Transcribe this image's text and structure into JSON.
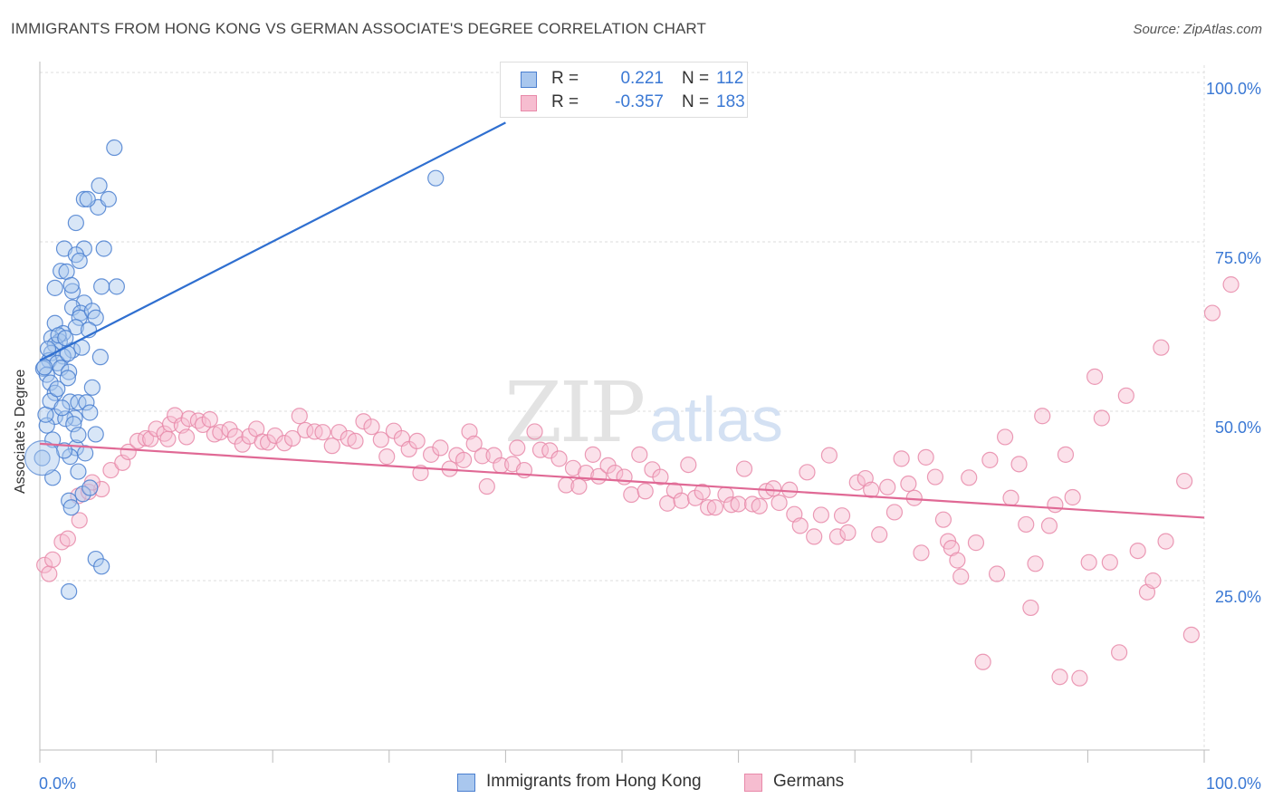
{
  "header": {
    "title": "IMMIGRANTS FROM HONG KONG VS GERMAN ASSOCIATE'S DEGREE CORRELATION CHART",
    "source": "Source: ZipAtlas.com"
  },
  "watermark": {
    "zip": "ZIP",
    "atlas": "atlas"
  },
  "legend_top": [
    {
      "r_key": "R =",
      "r_value": "0.221",
      "n_key": "N =",
      "n_value": "112"
    },
    {
      "r_key": "R =",
      "r_value": "-0.357",
      "n_key": "N =",
      "n_value": "183"
    }
  ],
  "colors": {
    "blue_fill": "#a9c7ee",
    "blue_stroke": "#4a7fd0",
    "blue_line": "#2f6fd0",
    "pink_fill": "#f6bdd0",
    "pink_stroke": "#e889a9",
    "pink_line": "#e06995",
    "tick_label": "#3a78d4",
    "grid": "#dddddd"
  },
  "chart_data": {
    "type": "scatter",
    "title": "IMMIGRANTS FROM HONG KONG VS GERMAN ASSOCIATE'S DEGREE CORRELATION CHART",
    "xlabel": "",
    "ylabel": "Associate's Degree",
    "xlim": [
      0,
      100
    ],
    "ylim": [
      0,
      100
    ],
    "x_tick_labels": [
      "0.0%",
      "100.0%"
    ],
    "y_tick_labels": [
      "25.0%",
      "50.0%",
      "75.0%",
      "100.0%"
    ],
    "y_ticks": [
      25,
      50,
      75,
      100
    ],
    "grid": true,
    "legend_placement": "bottom-center",
    "series": [
      {
        "name": "Immigrants from Hong Kong",
        "color": "blue",
        "trend": {
          "x": [
            0,
            40
          ],
          "y": [
            57.5,
            92.6
          ]
        },
        "points": [
          [
            6.4,
            88.9
          ],
          [
            5.1,
            83.3
          ],
          [
            3.8,
            81.3
          ],
          [
            5.0,
            80.1
          ],
          [
            4.1,
            81.3
          ],
          [
            5.9,
            81.3
          ],
          [
            34.0,
            84.4
          ],
          [
            3.1,
            77.8
          ],
          [
            2.1,
            74.0
          ],
          [
            3.8,
            74.0
          ],
          [
            5.5,
            74.0
          ],
          [
            3.1,
            73.1
          ],
          [
            3.4,
            72.2
          ],
          [
            1.8,
            70.7
          ],
          [
            2.3,
            70.6
          ],
          [
            5.3,
            68.4
          ],
          [
            6.6,
            68.4
          ],
          [
            2.8,
            67.7
          ],
          [
            2.7,
            68.6
          ],
          [
            1.3,
            68.2
          ],
          [
            3.8,
            66.0
          ],
          [
            2.8,
            65.3
          ],
          [
            3.5,
            64.5
          ],
          [
            3.4,
            63.8
          ],
          [
            4.5,
            64.8
          ],
          [
            4.8,
            63.8
          ],
          [
            1.3,
            63.0
          ],
          [
            3.1,
            62.4
          ],
          [
            2.0,
            61.5
          ],
          [
            1.0,
            60.8
          ],
          [
            1.7,
            60.3
          ],
          [
            1.3,
            59.8
          ],
          [
            2.8,
            59.0
          ],
          [
            1.0,
            58.6
          ],
          [
            2.0,
            58.1
          ],
          [
            0.8,
            57.5
          ],
          [
            1.5,
            57.1
          ],
          [
            0.3,
            56.3
          ],
          [
            1.8,
            56.4
          ],
          [
            2.5,
            55.8
          ],
          [
            0.6,
            55.4
          ],
          [
            2.4,
            54.9
          ],
          [
            0.9,
            54.2
          ],
          [
            4.5,
            53.5
          ],
          [
            1.3,
            52.7
          ],
          [
            2.6,
            51.4
          ],
          [
            3.3,
            51.3
          ],
          [
            4.0,
            51.3
          ],
          [
            4.3,
            49.8
          ],
          [
            1.3,
            49.2
          ],
          [
            3.0,
            49.0
          ],
          [
            2.2,
            48.9
          ],
          [
            0.6,
            47.9
          ],
          [
            2.9,
            48.1
          ],
          [
            4.8,
            46.6
          ],
          [
            1.1,
            45.8
          ],
          [
            3.1,
            44.6
          ],
          [
            2.6,
            43.3
          ],
          [
            3.9,
            43.8
          ],
          [
            0.2,
            43.1
          ],
          [
            1.1,
            40.2
          ],
          [
            3.3,
            41.1
          ],
          [
            3.7,
            37.8
          ],
          [
            2.5,
            36.8
          ],
          [
            2.7,
            35.8
          ],
          [
            4.3,
            38.7
          ],
          [
            4.8,
            28.2
          ],
          [
            5.3,
            27.1
          ],
          [
            2.5,
            23.4
          ],
          [
            0.5,
            49.5
          ],
          [
            0.4,
            56.5
          ],
          [
            1.6,
            61.2
          ],
          [
            2.4,
            58.5
          ],
          [
            3.6,
            59.4
          ],
          [
            0.9,
            51.5
          ],
          [
            1.9,
            50.5
          ],
          [
            3.3,
            46.5
          ],
          [
            2.1,
            44.2
          ],
          [
            1.5,
            53.3
          ],
          [
            2.2,
            60.8
          ],
          [
            0.7,
            59.2
          ],
          [
            4.2,
            62.0
          ],
          [
            5.2,
            58.0
          ]
        ]
      },
      {
        "name": "Germans",
        "color": "pink",
        "trend": {
          "x": [
            0,
            100
          ],
          "y": [
            45.2,
            34.3
          ]
        },
        "points": [
          [
            0.4,
            27.3
          ],
          [
            0.8,
            26.0
          ],
          [
            1.1,
            28.1
          ],
          [
            1.9,
            30.7
          ],
          [
            2.4,
            31.2
          ],
          [
            3.4,
            33.9
          ],
          [
            3.3,
            37.5
          ],
          [
            4.2,
            38.1
          ],
          [
            5.3,
            38.5
          ],
          [
            4.5,
            39.5
          ],
          [
            6.1,
            41.3
          ],
          [
            7.1,
            42.4
          ],
          [
            7.6,
            44.0
          ],
          [
            8.4,
            45.6
          ],
          [
            9.1,
            46.0
          ],
          [
            9.5,
            45.9
          ],
          [
            10.0,
            47.4
          ],
          [
            10.7,
            46.7
          ],
          [
            11.0,
            45.9
          ],
          [
            11.2,
            48.1
          ],
          [
            11.6,
            49.4
          ],
          [
            12.2,
            47.9
          ],
          [
            12.6,
            46.2
          ],
          [
            12.8,
            48.9
          ],
          [
            13.6,
            48.6
          ],
          [
            14.0,
            48.0
          ],
          [
            14.6,
            48.8
          ],
          [
            15.0,
            46.6
          ],
          [
            15.5,
            46.9
          ],
          [
            16.3,
            47.3
          ],
          [
            16.8,
            46.3
          ],
          [
            17.4,
            45.1
          ],
          [
            18.0,
            46.3
          ],
          [
            18.6,
            47.4
          ],
          [
            19.1,
            45.5
          ],
          [
            19.6,
            45.4
          ],
          [
            20.2,
            46.4
          ],
          [
            21.0,
            45.3
          ],
          [
            21.7,
            46.0
          ],
          [
            22.3,
            49.3
          ],
          [
            22.8,
            47.2
          ],
          [
            23.6,
            47.0
          ],
          [
            24.3,
            46.9
          ],
          [
            25.1,
            44.9
          ],
          [
            25.7,
            46.9
          ],
          [
            26.5,
            46.0
          ],
          [
            27.1,
            45.6
          ],
          [
            27.8,
            48.5
          ],
          [
            28.5,
            47.7
          ],
          [
            29.3,
            45.8
          ],
          [
            29.8,
            43.3
          ],
          [
            30.4,
            47.1
          ],
          [
            31.1,
            46.0
          ],
          [
            31.7,
            44.4
          ],
          [
            32.4,
            45.6
          ],
          [
            32.7,
            40.9
          ],
          [
            33.6,
            43.6
          ],
          [
            34.4,
            44.6
          ],
          [
            35.2,
            41.5
          ],
          [
            35.8,
            43.5
          ],
          [
            36.4,
            42.8
          ],
          [
            36.9,
            47.0
          ],
          [
            37.3,
            45.2
          ],
          [
            38.0,
            43.4
          ],
          [
            38.4,
            38.9
          ],
          [
            39.0,
            43.5
          ],
          [
            39.6,
            42.0
          ],
          [
            40.6,
            42.2
          ],
          [
            41.0,
            44.6
          ],
          [
            41.6,
            41.3
          ],
          [
            42.5,
            47.0
          ],
          [
            43.0,
            44.3
          ],
          [
            43.8,
            44.2
          ],
          [
            44.6,
            43.0
          ],
          [
            45.2,
            39.1
          ],
          [
            45.8,
            41.6
          ],
          [
            46.3,
            38.9
          ],
          [
            46.9,
            40.9
          ],
          [
            47.5,
            43.6
          ],
          [
            48.0,
            40.4
          ],
          [
            48.8,
            42.0
          ],
          [
            49.4,
            40.9
          ],
          [
            50.2,
            40.3
          ],
          [
            50.8,
            37.7
          ],
          [
            51.5,
            43.6
          ],
          [
            52.0,
            38.2
          ],
          [
            52.6,
            41.4
          ],
          [
            53.3,
            40.3
          ],
          [
            53.9,
            36.4
          ],
          [
            54.5,
            38.3
          ],
          [
            55.1,
            36.8
          ],
          [
            55.7,
            42.1
          ],
          [
            56.3,
            37.2
          ],
          [
            56.9,
            38.1
          ],
          [
            57.4,
            35.8
          ],
          [
            58.0,
            35.8
          ],
          [
            58.9,
            37.7
          ],
          [
            59.4,
            36.2
          ],
          [
            60.0,
            36.3
          ],
          [
            60.5,
            41.5
          ],
          [
            61.2,
            36.3
          ],
          [
            61.8,
            36.0
          ],
          [
            62.4,
            38.2
          ],
          [
            63.0,
            38.6
          ],
          [
            63.5,
            36.5
          ],
          [
            64.4,
            38.4
          ],
          [
            64.8,
            34.8
          ],
          [
            65.3,
            33.1
          ],
          [
            65.9,
            41.0
          ],
          [
            66.5,
            31.5
          ],
          [
            67.1,
            34.7
          ],
          [
            67.8,
            43.5
          ],
          [
            68.5,
            31.5
          ],
          [
            68.9,
            34.6
          ],
          [
            69.4,
            32.1
          ],
          [
            70.2,
            39.5
          ],
          [
            70.9,
            40.1
          ],
          [
            71.4,
            38.4
          ],
          [
            72.1,
            31.8
          ],
          [
            72.8,
            38.8
          ],
          [
            73.4,
            35.1
          ],
          [
            74.0,
            43.0
          ],
          [
            74.6,
            39.3
          ],
          [
            75.1,
            37.2
          ],
          [
            75.7,
            29.1
          ],
          [
            76.1,
            43.2
          ],
          [
            76.9,
            40.3
          ],
          [
            77.6,
            34.0
          ],
          [
            78.0,
            30.8
          ],
          [
            78.3,
            29.8
          ],
          [
            78.8,
            28.0
          ],
          [
            79.1,
            25.6
          ],
          [
            79.8,
            40.2
          ],
          [
            80.4,
            30.6
          ],
          [
            81.0,
            13.0
          ],
          [
            81.6,
            42.8
          ],
          [
            82.2,
            26.0
          ],
          [
            82.9,
            46.2
          ],
          [
            83.4,
            37.2
          ],
          [
            84.1,
            42.2
          ],
          [
            84.7,
            33.3
          ],
          [
            85.1,
            21.0
          ],
          [
            85.5,
            27.5
          ],
          [
            86.1,
            49.3
          ],
          [
            86.7,
            33.1
          ],
          [
            87.2,
            36.2
          ],
          [
            87.6,
            10.8
          ],
          [
            88.1,
            43.6
          ],
          [
            88.7,
            37.3
          ],
          [
            89.3,
            10.6
          ],
          [
            90.1,
            27.7
          ],
          [
            90.6,
            55.1
          ],
          [
            91.2,
            49.0
          ],
          [
            91.9,
            27.7
          ],
          [
            92.7,
            14.4
          ],
          [
            93.3,
            52.3
          ],
          [
            94.3,
            29.4
          ],
          [
            95.1,
            23.3
          ],
          [
            95.6,
            25.0
          ],
          [
            96.3,
            59.4
          ],
          [
            96.7,
            30.8
          ],
          [
            98.3,
            39.7
          ],
          [
            98.9,
            17.0
          ],
          [
            100.7,
            64.5
          ],
          [
            102.3,
            68.7
          ]
        ]
      }
    ]
  },
  "legend_bottom": [
    {
      "label": "Immigrants from Hong Kong"
    },
    {
      "label": "Germans"
    }
  ]
}
